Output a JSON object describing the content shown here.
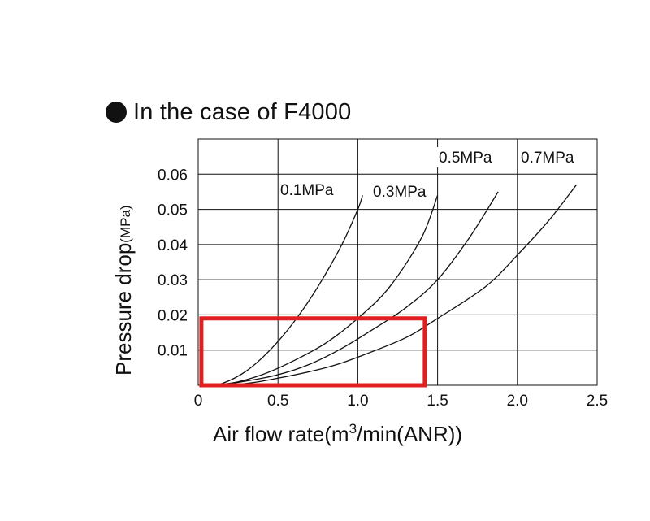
{
  "chart_data": {
    "type": "line",
    "title": "In the case of F4000",
    "xlabel_prefix": "Air flow rate(m",
    "xlabel_superscript": "3",
    "xlabel_suffix": "/min(ANR))",
    "ylabel": "Pressure drop",
    "ylabel_unit": "(MPa)",
    "xlim": [
      0,
      2.5
    ],
    "ylim": [
      0,
      0.06
    ],
    "x_ticks": [
      "0",
      "0.5",
      "1.0",
      "1.5",
      "2.0",
      "2.5"
    ],
    "y_ticks": [
      "0.01",
      "0.02",
      "0.03",
      "0.04",
      "0.05",
      "0.06"
    ],
    "grid": true,
    "series": [
      {
        "name": "0.1MPa",
        "points": [
          [
            0.05,
            0
          ],
          [
            0.15,
            0.0005
          ],
          [
            0.3,
            0.004
          ],
          [
            0.45,
            0.01
          ],
          [
            0.6,
            0.018
          ],
          [
            0.75,
            0.028
          ],
          [
            0.9,
            0.04
          ],
          [
            1.0,
            0.05
          ],
          [
            1.03,
            0.054
          ]
        ]
      },
      {
        "name": "0.3MPa",
        "points": [
          [
            0.05,
            0
          ],
          [
            0.2,
            0.0005
          ],
          [
            0.4,
            0.003
          ],
          [
            0.6,
            0.007
          ],
          [
            0.8,
            0.012
          ],
          [
            1.0,
            0.019
          ],
          [
            1.2,
            0.028
          ],
          [
            1.4,
            0.042
          ],
          [
            1.5,
            0.054
          ]
        ]
      },
      {
        "name": "0.5MPa",
        "points": [
          [
            0.1,
            0
          ],
          [
            0.3,
            0.0012
          ],
          [
            0.5,
            0.003
          ],
          [
            0.7,
            0.006
          ],
          [
            0.9,
            0.0105
          ],
          [
            1.1,
            0.016
          ],
          [
            1.3,
            0.022
          ],
          [
            1.5,
            0.03
          ],
          [
            1.7,
            0.042
          ],
          [
            1.88,
            0.055
          ]
        ]
      },
      {
        "name": "0.7MPa",
        "points": [
          [
            0.1,
            0
          ],
          [
            0.3,
            0.0005
          ],
          [
            0.5,
            0.002
          ],
          [
            0.8,
            0.005
          ],
          [
            1.0,
            0.008
          ],
          [
            1.3,
            0.0135
          ],
          [
            1.5,
            0.019
          ],
          [
            1.8,
            0.028
          ],
          [
            2.0,
            0.037
          ],
          [
            2.2,
            0.047
          ],
          [
            2.37,
            0.057
          ]
        ]
      }
    ],
    "highlight_box": {
      "x": [
        0.02,
        1.42
      ],
      "y": [
        0,
        0.019
      ],
      "color": "#e02020"
    }
  }
}
